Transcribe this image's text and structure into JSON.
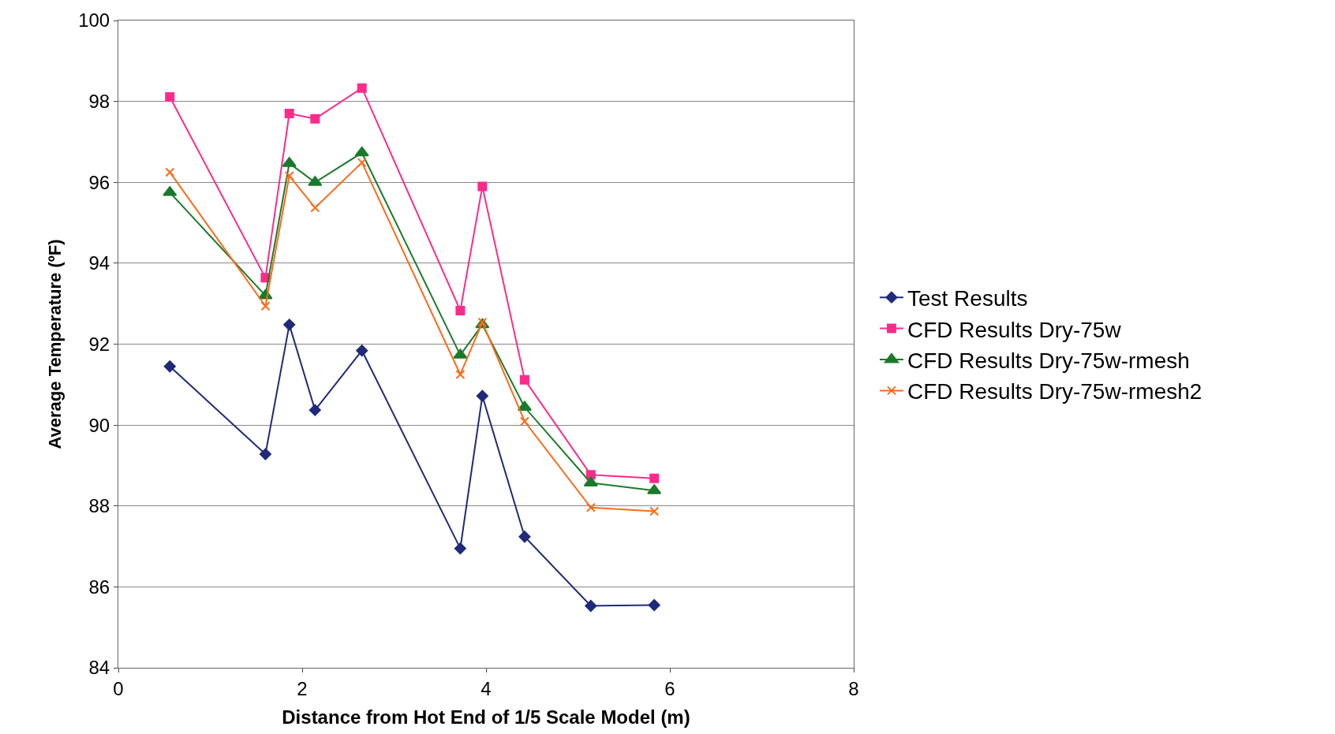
{
  "chart_data": {
    "type": "line",
    "xlabel": "Distance from Hot End of 1/5 Scale Model (m)",
    "ylabel": "Average Temperature (ºF)",
    "x": [
      0.56,
      1.6,
      1.86,
      2.14,
      2.65,
      3.72,
      3.96,
      4.42,
      5.14,
      5.83
    ],
    "xlim": [
      0,
      8
    ],
    "xticks": [
      0,
      2,
      4,
      6,
      8
    ],
    "ylim": [
      84,
      100
    ],
    "yticks": [
      84,
      86,
      88,
      90,
      92,
      94,
      96,
      98,
      100
    ],
    "grid": "y",
    "legend": "right",
    "series": [
      {
        "name": "Test Results",
        "color": "#1f2a7a",
        "marker": "diamond",
        "values": [
          91.45,
          89.28,
          92.48,
          90.37,
          91.84,
          86.95,
          90.72,
          87.24,
          85.53,
          85.55
        ]
      },
      {
        "name": "CFD Results Dry-75w",
        "color": "#ff2a8a",
        "marker": "square",
        "values": [
          98.11,
          93.64,
          97.7,
          97.57,
          98.33,
          92.83,
          95.9,
          91.12,
          88.77,
          88.68
        ]
      },
      {
        "name": "CFD Results Dry-75w-rmesh",
        "color": "#1a7a2a",
        "marker": "triangle",
        "values": [
          95.75,
          93.2,
          96.47,
          96.0,
          96.73,
          91.73,
          92.48,
          90.44,
          88.57,
          88.38
        ]
      },
      {
        "name": "CFD Results Dry-75w-rmesh2",
        "color": "#ff6a1a",
        "marker": "cross",
        "values": [
          96.25,
          92.94,
          96.16,
          95.37,
          96.49,
          91.25,
          92.54,
          90.09,
          87.96,
          87.87
        ]
      }
    ]
  }
}
